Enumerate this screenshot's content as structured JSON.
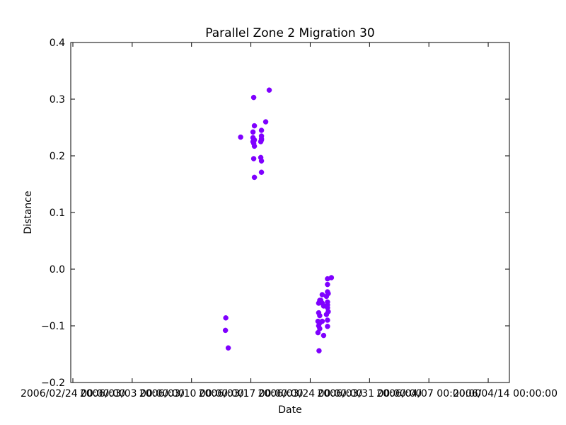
{
  "chart_data": {
    "type": "scatter",
    "title": "Parallel Zone 2 Migration 30",
    "xlabel": "Date",
    "ylabel": "Distance",
    "ylim": [
      -0.2,
      0.4
    ],
    "yticks": [
      -0.2,
      -0.1,
      0.0,
      0.1,
      0.2,
      0.3,
      0.4
    ],
    "ytick_labels": [
      "−0.2",
      "−0.1",
      "0.0",
      "0.1",
      "0.2",
      "0.3",
      "0.4"
    ],
    "xlim": [
      "2006-02-23T18:00:00",
      "2006-04-16T12:00:00"
    ],
    "xticks": [
      "2006-02-24",
      "2006-03-03",
      "2006-03-10",
      "2006-03-17",
      "2006-03-24",
      "2006-03-31",
      "2006-04-07",
      "2006-04-14"
    ],
    "xtick_labels": [
      "2006/02/24 00:00:00",
      "2006/03/03 00:00:00",
      "2006/03/10 00:00:00",
      "2006/03/17 00:00:00",
      "2006/03/24 00:00:00",
      "2006/03/31 00:00:00",
      "2006/04/07 00:00:00",
      "2006/04/14 00:00:00"
    ],
    "grid": false,
    "marker_color": "#7f00ff",
    "points": [
      {
        "x": "2006-03-14T01:00:00",
        "y": -0.086
      },
      {
        "x": "2006-03-14T00:00:00",
        "y": -0.108
      },
      {
        "x": "2006-03-14T08:00:00",
        "y": -0.139
      },
      {
        "x": "2006-03-15T19:00:00",
        "y": 0.233
      },
      {
        "x": "2006-03-17T08:00:00",
        "y": 0.303
      },
      {
        "x": "2006-03-17T10:00:00",
        "y": 0.253
      },
      {
        "x": "2006-03-17T06:00:00",
        "y": 0.242
      },
      {
        "x": "2006-03-17T06:00:00",
        "y": 0.232
      },
      {
        "x": "2006-03-17T10:00:00",
        "y": 0.228
      },
      {
        "x": "2006-03-17T06:00:00",
        "y": 0.225
      },
      {
        "x": "2006-03-17T08:00:00",
        "y": 0.222
      },
      {
        "x": "2006-03-17T10:00:00",
        "y": 0.217
      },
      {
        "x": "2006-03-17T08:00:00",
        "y": 0.195
      },
      {
        "x": "2006-03-17T10:00:00",
        "y": 0.162
      },
      {
        "x": "2006-03-18T06:00:00",
        "y": 0.245
      },
      {
        "x": "2006-03-18T06:00:00",
        "y": 0.235
      },
      {
        "x": "2006-03-18T06:00:00",
        "y": 0.23
      },
      {
        "x": "2006-03-18T04:00:00",
        "y": 0.225
      },
      {
        "x": "2006-03-18T06:00:00",
        "y": 0.228
      },
      {
        "x": "2006-03-18T04:00:00",
        "y": 0.197
      },
      {
        "x": "2006-03-18T06:00:00",
        "y": 0.191
      },
      {
        "x": "2006-03-18T06:00:00",
        "y": 0.171
      },
      {
        "x": "2006-03-18T18:00:00",
        "y": 0.26
      },
      {
        "x": "2006-03-19T04:00:00",
        "y": 0.316
      },
      {
        "x": "2006-03-25T00:00:00",
        "y": -0.06
      },
      {
        "x": "2006-03-25T03:00:00",
        "y": -0.055
      },
      {
        "x": "2006-03-25T00:00:00",
        "y": -0.077
      },
      {
        "x": "2006-03-25T03:00:00",
        "y": -0.082
      },
      {
        "x": "2006-03-24T22:00:00",
        "y": -0.092
      },
      {
        "x": "2006-03-25T03:00:00",
        "y": -0.095
      },
      {
        "x": "2006-03-25T00:00:00",
        "y": -0.1
      },
      {
        "x": "2006-03-25T03:00:00",
        "y": -0.105
      },
      {
        "x": "2006-03-24T22:00:00",
        "y": -0.112
      },
      {
        "x": "2006-03-25T01:00:00",
        "y": -0.144
      },
      {
        "x": "2006-03-25T10:00:00",
        "y": -0.045
      },
      {
        "x": "2006-03-25T06:00:00",
        "y": -0.055
      },
      {
        "x": "2006-03-25T10:00:00",
        "y": -0.06
      },
      {
        "x": "2006-03-25T14:00:00",
        "y": -0.065
      },
      {
        "x": "2006-03-25T10:00:00",
        "y": -0.092
      },
      {
        "x": "2006-03-25T14:00:00",
        "y": -0.117
      },
      {
        "x": "2006-03-26T01:00:00",
        "y": -0.017
      },
      {
        "x": "2006-03-26T01:00:00",
        "y": -0.027
      },
      {
        "x": "2006-03-26T01:00:00",
        "y": -0.04
      },
      {
        "x": "2006-03-26T03:00:00",
        "y": -0.043
      },
      {
        "x": "2006-03-25T22:00:00",
        "y": -0.048
      },
      {
        "x": "2006-03-26T01:00:00",
        "y": -0.058
      },
      {
        "x": "2006-03-26T01:00:00",
        "y": -0.063
      },
      {
        "x": "2006-03-26T01:00:00",
        "y": -0.068
      },
      {
        "x": "2006-03-26T03:00:00",
        "y": -0.075
      },
      {
        "x": "2006-03-25T22:00:00",
        "y": -0.08
      },
      {
        "x": "2006-03-26T01:00:00",
        "y": -0.09
      },
      {
        "x": "2006-03-26T01:00:00",
        "y": -0.101
      },
      {
        "x": "2006-03-26T12:00:00",
        "y": -0.015
      }
    ]
  }
}
